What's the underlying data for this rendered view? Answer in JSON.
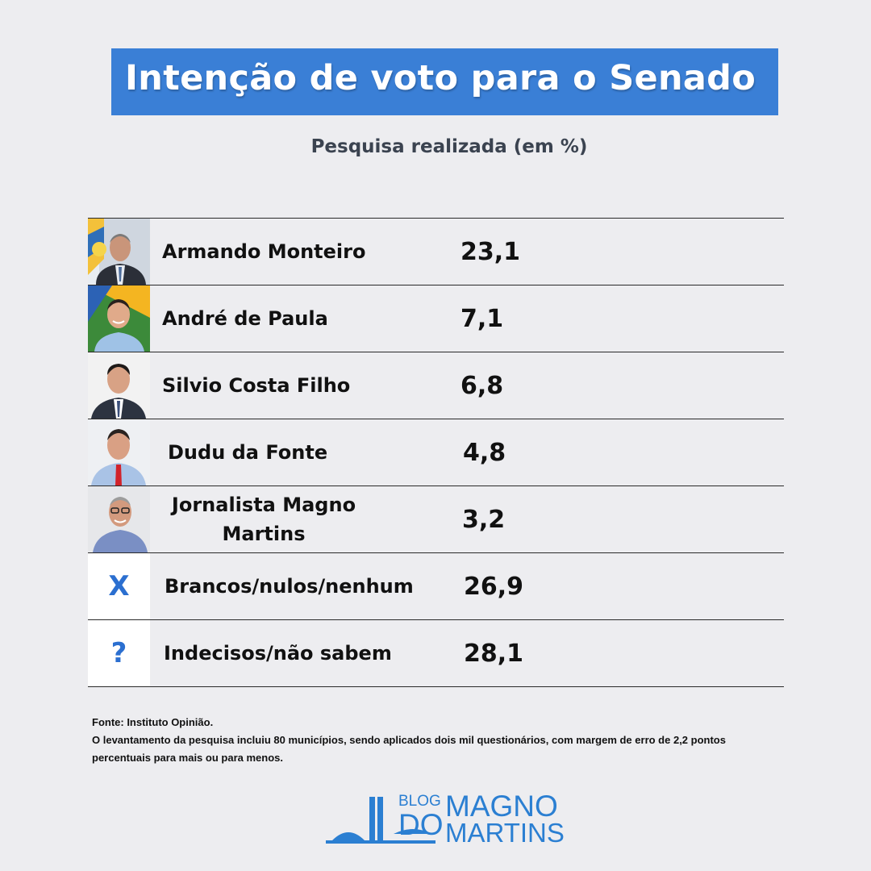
{
  "header": {
    "title": "Intenção de voto para o Senado",
    "subtitle": "Pesquisa realizada (em %)"
  },
  "rows": [
    {
      "name": "Armando Monteiro",
      "value": "23,1"
    },
    {
      "name": "André de Paula",
      "value": "7,1"
    },
    {
      "name": "Silvio Costa Filho",
      "value": "6,8"
    },
    {
      "name": "Dudu da Fonte",
      "value": "4,8"
    },
    {
      "name": "Jornalista Magno Martins",
      "value": "3,2"
    },
    {
      "symbol": "X",
      "name": "Brancos/nulos/nenhum",
      "value": "26,9"
    },
    {
      "symbol": "?",
      "name": "Indecisos/não sabem",
      "value": "28,1"
    }
  ],
  "footer": {
    "source": "Fonte:  Instituto Opinião.",
    "note": "O levantamento da pesquisa incluiu 80 municípios, sendo aplicados dois mil questionários, com margem de erro de 2,2 pontos percentuais para mais ou para menos."
  },
  "logo": {
    "blog": "BLOG",
    "do": "DO",
    "magno": "MAGNO",
    "martins": "MARTINS",
    "color": "#2b7fd2"
  },
  "colors": {
    "title_bg": "#3a7fd6",
    "background": "#ededf0",
    "symbol": "#2b6fd0"
  }
}
